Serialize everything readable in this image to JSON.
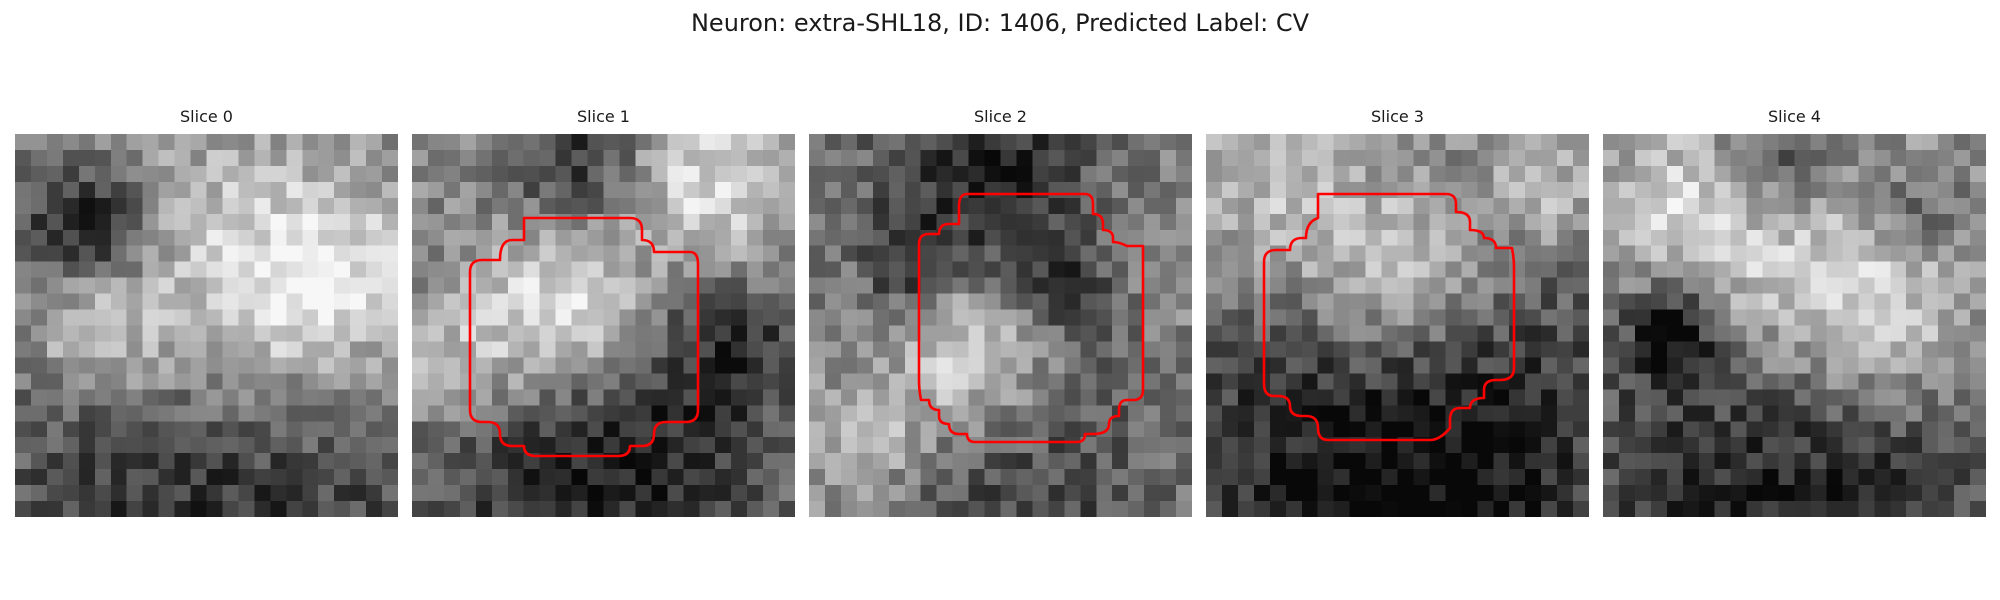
{
  "title": "Neuron: extra-SHL18, ID: 1406, Predicted Label: CV",
  "contour_color": "#ff0000",
  "panels": [
    {
      "label": "Slice 0",
      "has_contour": false
    },
    {
      "label": "Slice 1",
      "has_contour": true
    },
    {
      "label": "Slice 2",
      "has_contour": true
    },
    {
      "label": "Slice 3",
      "has_contour": true
    },
    {
      "label": "Slice 4",
      "has_contour": false
    }
  ]
}
